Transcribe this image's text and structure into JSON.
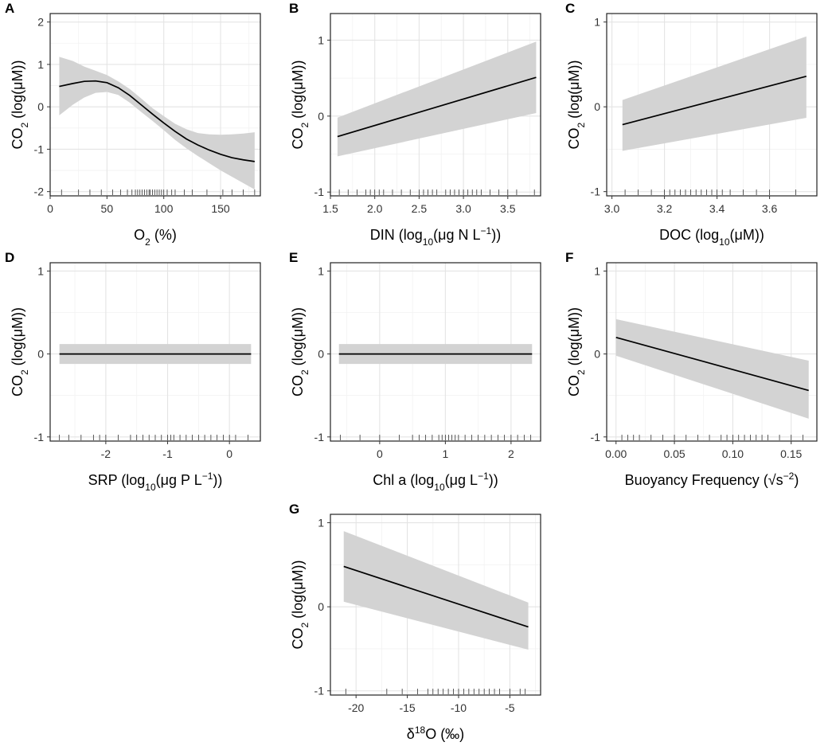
{
  "chart_data": [
    {
      "panel": "A",
      "type": "line",
      "ylabel": "CO2 (log(μM))",
      "xlabel": "O2 (%)",
      "xlim": [
        0,
        185
      ],
      "ylim": [
        -2.1,
        2.2
      ],
      "xticks": [
        0,
        50,
        100,
        150
      ],
      "yticks": [
        -2,
        -1,
        0,
        1,
        2
      ],
      "xticklabels": [
        "0",
        "50",
        "100",
        "150"
      ],
      "yticklabels": [
        "-2",
        "-1",
        "0",
        "1",
        "2"
      ],
      "fit": {
        "x": [
          8,
          20,
          30,
          40,
          50,
          60,
          70,
          80,
          90,
          100,
          110,
          120,
          130,
          140,
          150,
          160,
          170,
          180
        ],
        "y": [
          0.48,
          0.55,
          0.6,
          0.61,
          0.57,
          0.45,
          0.27,
          0.05,
          -0.17,
          -0.38,
          -0.58,
          -0.76,
          -0.9,
          -1.02,
          -1.12,
          -1.2,
          -1.25,
          -1.29
        ]
      },
      "band_upper": [
        1.18,
        1.08,
        0.95,
        0.85,
        0.75,
        0.6,
        0.42,
        0.2,
        -0.03,
        -0.22,
        -0.4,
        -0.53,
        -0.62,
        -0.65,
        -0.66,
        -0.65,
        -0.63,
        -0.6
      ],
      "band_lower": [
        -0.2,
        0.05,
        0.22,
        0.33,
        0.35,
        0.28,
        0.1,
        -0.12,
        -0.33,
        -0.55,
        -0.78,
        -0.98,
        -1.16,
        -1.33,
        -1.5,
        -1.65,
        -1.8,
        -1.95
      ],
      "rug": [
        10,
        25,
        35,
        45,
        55,
        62,
        68,
        72,
        75,
        77,
        79,
        81,
        83,
        85,
        87,
        88,
        90,
        92,
        94,
        96,
        98,
        100,
        103,
        107,
        110,
        118,
        125,
        138,
        152,
        160,
        170,
        180
      ]
    },
    {
      "panel": "B",
      "type": "line",
      "ylabel": "CO2 (log(μM))",
      "xlabel": "DIN (log10(μg N L−1))",
      "xlim": [
        1.5,
        3.87
      ],
      "ylim": [
        -1.05,
        1.35
      ],
      "xticks": [
        1.5,
        2.0,
        2.5,
        3.0,
        3.5
      ],
      "yticks": [
        -1,
        0,
        1
      ],
      "xticklabels": [
        "1.5",
        "2.0",
        "2.5",
        "3.0",
        "3.5"
      ],
      "yticklabels": [
        "-1",
        "0",
        "1"
      ],
      "fit": {
        "x": [
          1.58,
          3.82
        ],
        "y": [
          -0.27,
          0.51
        ]
      },
      "band_upper": [
        -0.02,
        0.98
      ],
      "band_lower": [
        -0.53,
        0.04
      ],
      "rug": [
        1.6,
        1.7,
        1.8,
        1.9,
        1.95,
        2.0,
        2.05,
        2.1,
        2.2,
        2.3,
        2.4,
        2.5,
        2.55,
        2.6,
        2.65,
        2.7,
        2.8,
        2.85,
        2.9,
        2.95,
        3.0,
        3.05,
        3.1,
        3.15,
        3.2,
        3.3,
        3.4,
        3.5,
        3.6,
        3.8
      ]
    },
    {
      "panel": "C",
      "type": "line",
      "ylabel": "CO2 (log(μM))",
      "xlabel": "DOC (log10(μM))",
      "xlim": [
        2.98,
        3.78
      ],
      "ylim": [
        -1.05,
        1.1
      ],
      "xticks": [
        3.0,
        3.2,
        3.4,
        3.6
      ],
      "yticks": [
        -1,
        0,
        1
      ],
      "xticklabels": [
        "3.0",
        "3.2",
        "3.4",
        "3.6"
      ],
      "yticklabels": [
        "-1",
        "0",
        "1"
      ],
      "fit": {
        "x": [
          3.04,
          3.74
        ],
        "y": [
          -0.21,
          0.36
        ]
      },
      "band_upper": [
        0.08,
        0.83
      ],
      "band_lower": [
        -0.52,
        -0.13
      ],
      "rug": [
        3.05,
        3.1,
        3.15,
        3.2,
        3.22,
        3.24,
        3.26,
        3.28,
        3.3,
        3.32,
        3.34,
        3.36,
        3.38,
        3.4,
        3.42,
        3.45,
        3.5,
        3.55,
        3.6,
        3.7
      ]
    },
    {
      "panel": "D",
      "type": "line",
      "ylabel": "CO2 (log(μM))",
      "xlabel": "SRP (log10(μg P L−1))",
      "xlim": [
        -2.9,
        0.5
      ],
      "ylim": [
        -1.05,
        1.1
      ],
      "xticks": [
        -2,
        -1,
        0
      ],
      "yticks": [
        -1,
        0,
        1
      ],
      "xticklabels": [
        "-2",
        "-1",
        "0"
      ],
      "yticklabels": [
        "-1",
        "0",
        "1"
      ],
      "fit": {
        "x": [
          -2.75,
          0.35
        ],
        "y": [
          0,
          0
        ]
      },
      "band_upper": [
        0.12,
        0.12
      ],
      "band_lower": [
        -0.12,
        -0.12
      ],
      "rug": [
        -2.75,
        -2.6,
        -2.4,
        -2.2,
        -2.1,
        -2.0,
        -1.8,
        -1.6,
        -1.5,
        -1.4,
        -1.3,
        -1.2,
        -1.1,
        -1.0,
        -0.95,
        -0.9,
        -0.8,
        -0.7,
        -0.6,
        -0.5,
        -0.4,
        -0.3,
        -0.2,
        -0.1,
        0.0,
        0.1,
        0.3
      ]
    },
    {
      "panel": "E",
      "type": "line",
      "ylabel": "CO2 (log(μM))",
      "xlabel": "Chl a (log10(μg L−1))",
      "xlim": [
        -0.75,
        2.45
      ],
      "ylim": [
        -1.05,
        1.1
      ],
      "xticks": [
        0,
        1,
        2
      ],
      "yticks": [
        -1,
        0,
        1
      ],
      "xticklabels": [
        "0",
        "1",
        "2"
      ],
      "yticklabels": [
        "-1",
        "0",
        "1"
      ],
      "fit": {
        "x": [
          -0.62,
          2.32
        ],
        "y": [
          0,
          0
        ]
      },
      "band_upper": [
        0.12,
        0.12
      ],
      "band_lower": [
        -0.12,
        -0.12
      ],
      "rug": [
        -0.6,
        -0.3,
        0.0,
        0.3,
        0.5,
        0.6,
        0.7,
        0.8,
        0.9,
        0.95,
        1.0,
        1.05,
        1.1,
        1.15,
        1.2,
        1.3,
        1.4,
        1.5,
        1.6,
        1.7,
        1.8,
        1.9,
        2.0,
        2.1,
        2.2,
        2.3
      ]
    },
    {
      "panel": "F",
      "type": "line",
      "ylabel": "CO2 (log(μM))",
      "xlabel": "Buoyancy Frequency (√s−2)",
      "xlim": [
        -0.008,
        0.172
      ],
      "ylim": [
        -1.05,
        1.1
      ],
      "xticks": [
        0.0,
        0.05,
        0.1,
        0.15
      ],
      "yticks": [
        -1,
        0,
        1
      ],
      "xticklabels": [
        "0.00",
        "0.05",
        "0.10",
        "0.15"
      ],
      "yticklabels": [
        "-1",
        "0",
        "1"
      ],
      "fit": {
        "x": [
          0.0,
          0.165
        ],
        "y": [
          0.2,
          -0.44
        ]
      },
      "band_upper": [
        0.42,
        -0.08
      ],
      "band_lower": [
        -0.02,
        -0.78
      ],
      "rug": [
        0.005,
        0.01,
        0.015,
        0.02,
        0.03,
        0.04,
        0.05,
        0.06,
        0.07,
        0.08,
        0.09,
        0.095,
        0.1,
        0.105,
        0.11,
        0.115,
        0.12,
        0.125,
        0.13,
        0.14,
        0.15,
        0.16
      ]
    },
    {
      "panel": "G",
      "type": "line",
      "ylabel": "CO2 (log(μM))",
      "xlabel": "δ18O (‰)",
      "xlim": [
        -22.5,
        -2
      ],
      "ylim": [
        -1.05,
        1.1
      ],
      "xticks": [
        -20,
        -15,
        -10,
        -5
      ],
      "yticks": [
        -1,
        0,
        1
      ],
      "xticklabels": [
        "-20",
        "-15",
        "-10",
        "-5"
      ],
      "yticklabels": [
        "-1",
        "0",
        "1"
      ],
      "fit": {
        "x": [
          -21.2,
          -3.2
        ],
        "y": [
          0.48,
          -0.24
        ]
      },
      "band_upper": [
        0.9,
        0.05
      ],
      "band_lower": [
        0.06,
        -0.51
      ],
      "rug": [
        -21,
        -17,
        -15.5,
        -14,
        -13,
        -12.5,
        -12,
        -11.5,
        -11,
        -10.5,
        -10,
        -9.5,
        -9,
        -8.5,
        -8,
        -7.5,
        -7,
        -6.5,
        -6,
        -5,
        -4,
        -3.5
      ]
    }
  ]
}
